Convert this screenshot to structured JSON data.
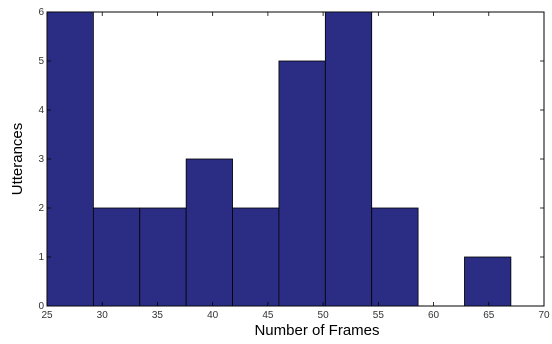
{
  "chart_data": {
    "type": "bar",
    "subtype": "histogram",
    "xlabel": "Number of Frames",
    "ylabel": "Utterances",
    "xlim": [
      25,
      70
    ],
    "ylim": [
      0,
      6
    ],
    "x_ticks": [
      25,
      30,
      35,
      40,
      45,
      50,
      55,
      60,
      65,
      70
    ],
    "y_ticks": [
      0,
      1,
      2,
      3,
      4,
      5,
      6
    ],
    "bins": [
      {
        "x0": 25.0,
        "x1": 29.2,
        "count": 6
      },
      {
        "x0": 29.2,
        "x1": 33.4,
        "count": 2
      },
      {
        "x0": 33.4,
        "x1": 37.6,
        "count": 2
      },
      {
        "x0": 37.6,
        "x1": 41.8,
        "count": 3
      },
      {
        "x0": 41.8,
        "x1": 46.0,
        "count": 2
      },
      {
        "x0": 46.0,
        "x1": 50.2,
        "count": 5
      },
      {
        "x0": 50.2,
        "x1": 54.4,
        "count": 6
      },
      {
        "x0": 54.4,
        "x1": 58.6,
        "count": 2
      },
      {
        "x0": 58.6,
        "x1": 62.8,
        "count": 0
      },
      {
        "x0": 62.8,
        "x1": 67.0,
        "count": 1
      }
    ],
    "bar_color": "#2b2d84",
    "edge_color": "#000000",
    "grid": false
  }
}
